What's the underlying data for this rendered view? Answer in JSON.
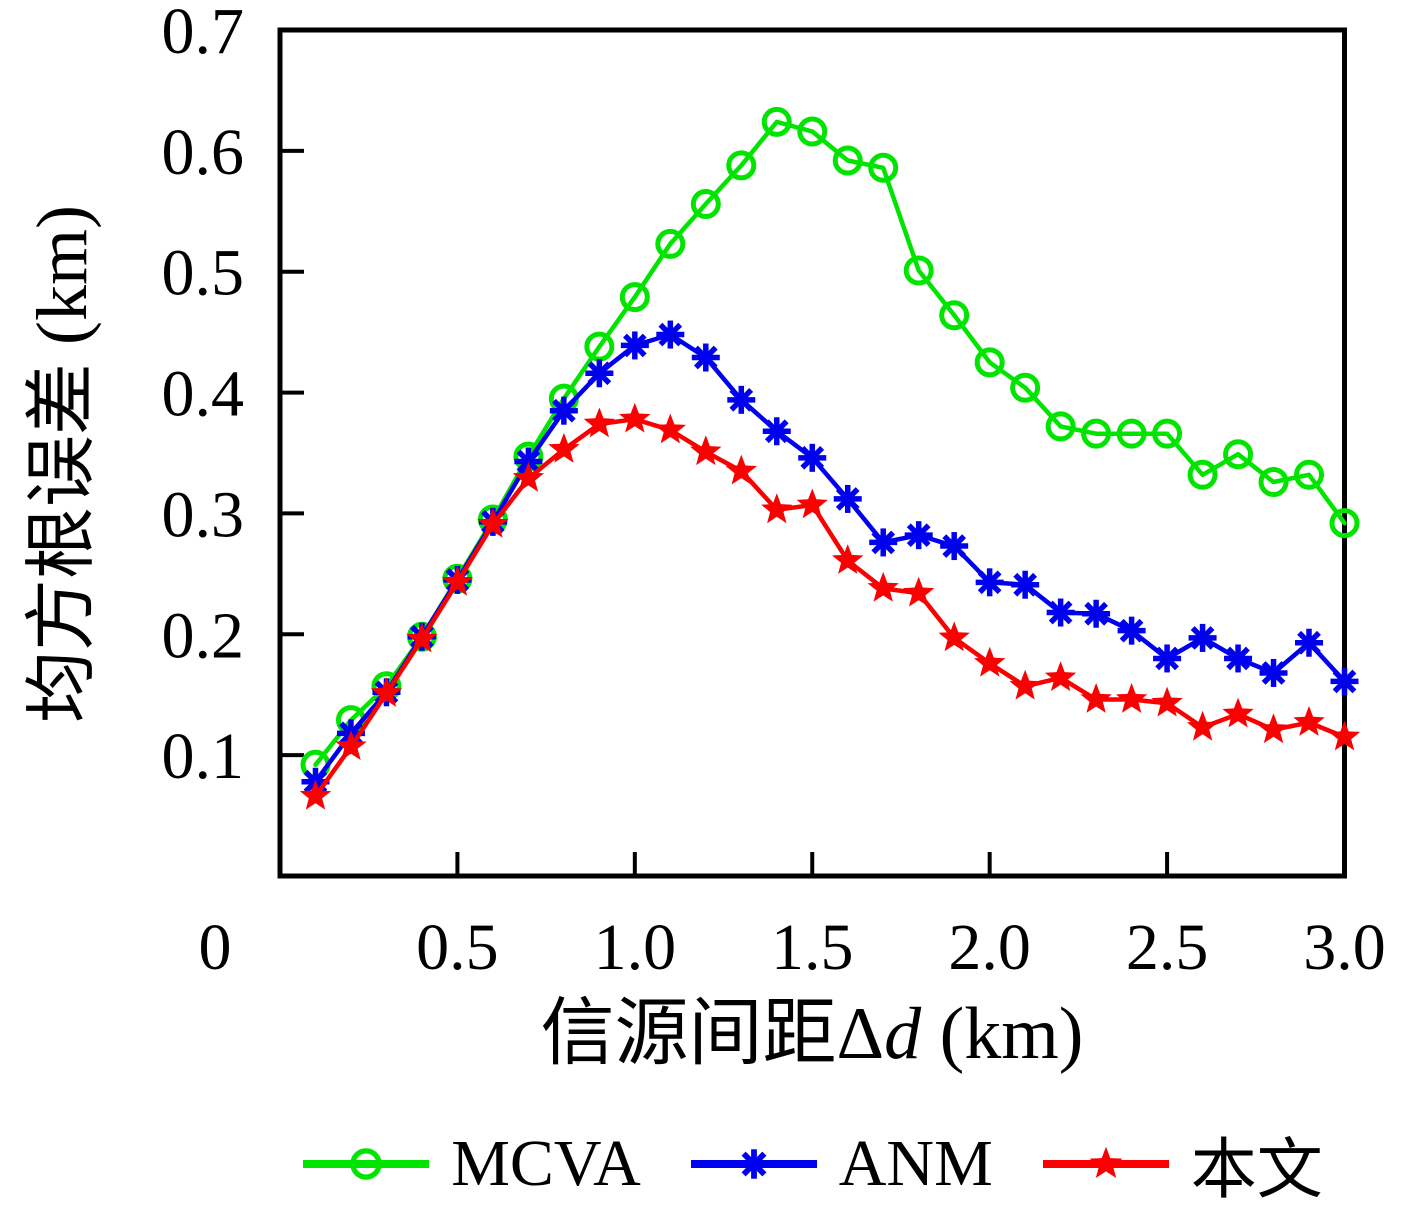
{
  "chart_data": {
    "type": "line",
    "title": "",
    "xlabel": "信源间距Δd (km)",
    "ylabel": "均方根误差 (km)",
    "xlim": [
      0,
      3
    ],
    "ylim": [
      0,
      0.7
    ],
    "grid": false,
    "legend_position": "bottom",
    "x_ticks": [
      0,
      0.5,
      1.0,
      1.5,
      2.0,
      2.5,
      3.0
    ],
    "x_tick_labels": [
      "0",
      "0.5",
      "1.0",
      "1.5",
      "2.0",
      "2.5",
      "3.0"
    ],
    "y_ticks": [
      0.1,
      0.2,
      0.3,
      0.4,
      0.5,
      0.6,
      0.7
    ],
    "y_tick_labels": [
      "0.1",
      "0.2",
      "0.3",
      "0.4",
      "0.5",
      "0.6",
      "0.7"
    ],
    "x": [
      0.1,
      0.2,
      0.3,
      0.4,
      0.5,
      0.6,
      0.7,
      0.8,
      0.9,
      1.0,
      1.1,
      1.2,
      1.3,
      1.4,
      1.5,
      1.6,
      1.7,
      1.8,
      1.9,
      2.0,
      2.1,
      2.2,
      2.3,
      2.4,
      2.5,
      2.6,
      2.7,
      2.8,
      2.9,
      3.0
    ],
    "series": [
      {
        "name": "MCVA",
        "slug": "mcva",
        "color": "#00e400",
        "marker": "circle",
        "values": [
          0.092,
          0.129,
          0.157,
          0.198,
          0.246,
          0.295,
          0.347,
          0.395,
          0.438,
          0.479,
          0.523,
          0.556,
          0.588,
          0.624,
          0.616,
          0.592,
          0.586,
          0.501,
          0.464,
          0.425,
          0.404,
          0.372,
          0.366,
          0.366,
          0.366,
          0.332,
          0.349,
          0.326,
          0.332,
          0.292
        ]
      },
      {
        "name": "ANM",
        "slug": "anm",
        "color": "#0000f0",
        "marker": "asterisk",
        "values": [
          0.078,
          0.118,
          0.152,
          0.198,
          0.245,
          0.293,
          0.343,
          0.385,
          0.416,
          0.439,
          0.448,
          0.429,
          0.394,
          0.368,
          0.346,
          0.312,
          0.276,
          0.282,
          0.273,
          0.243,
          0.241,
          0.218,
          0.217,
          0.203,
          0.18,
          0.197,
          0.18,
          0.168,
          0.193,
          0.161
        ]
      },
      {
        "name": "本文",
        "slug": "benwen",
        "color": "#fa0000",
        "marker": "star",
        "values": [
          0.066,
          0.107,
          0.151,
          0.196,
          0.243,
          0.291,
          0.329,
          0.353,
          0.374,
          0.378,
          0.369,
          0.351,
          0.335,
          0.303,
          0.307,
          0.261,
          0.238,
          0.234,
          0.197,
          0.176,
          0.157,
          0.164,
          0.146,
          0.146,
          0.143,
          0.123,
          0.134,
          0.121,
          0.127,
          0.115
        ]
      }
    ]
  },
  "labels": {
    "xlabel_prefix": "信源间距Δ",
    "xlabel_var": "d",
    "xlabel_unit": " (km)"
  }
}
